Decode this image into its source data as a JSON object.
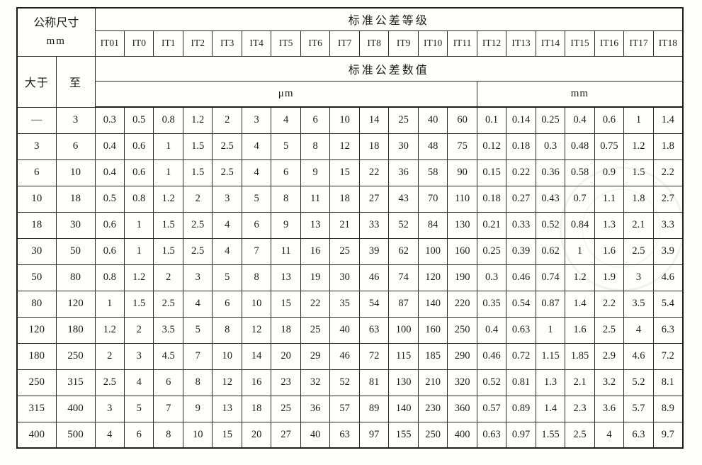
{
  "table": {
    "header": {
      "nominal_size_title": "公称尺寸",
      "nominal_size_unit": "mm",
      "grades_title": "标准公差等级",
      "values_title": "标准公差数值",
      "col_over": "大于",
      "col_to": "至",
      "unit_micron": "μm",
      "unit_mm": "mm",
      "grade_labels": [
        "IT01",
        "IT0",
        "IT1",
        "IT2",
        "IT3",
        "IT4",
        "IT5",
        "IT6",
        "IT7",
        "IT8",
        "IT9",
        "IT10",
        "IT11",
        "IT12",
        "IT13",
        "IT14",
        "IT15",
        "IT16",
        "IT17",
        "IT18"
      ],
      "micron_span": 13,
      "mm_span": 7
    },
    "rows": [
      {
        "over": "—",
        "to": "3",
        "values": [
          "0.3",
          "0.5",
          "0.8",
          "1.2",
          "2",
          "3",
          "4",
          "6",
          "10",
          "14",
          "25",
          "40",
          "60",
          "0.1",
          "0.14",
          "0.25",
          "0.4",
          "0.6",
          "1",
          "1.4"
        ]
      },
      {
        "over": "3",
        "to": "6",
        "values": [
          "0.4",
          "0.6",
          "1",
          "1.5",
          "2.5",
          "4",
          "5",
          "8",
          "12",
          "18",
          "30",
          "48",
          "75",
          "0.12",
          "0.18",
          "0.3",
          "0.48",
          "0.75",
          "1.2",
          "1.8"
        ]
      },
      {
        "over": "6",
        "to": "10",
        "values": [
          "0.4",
          "0.6",
          "1",
          "1.5",
          "2.5",
          "4",
          "6",
          "9",
          "15",
          "22",
          "36",
          "58",
          "90",
          "0.15",
          "0.22",
          "0.36",
          "0.58",
          "0.9",
          "1.5",
          "2.2"
        ]
      },
      {
        "over": "10",
        "to": "18",
        "values": [
          "0.5",
          "0.8",
          "1.2",
          "2",
          "3",
          "5",
          "8",
          "11",
          "18",
          "27",
          "43",
          "70",
          "110",
          "0.18",
          "0.27",
          "0.43",
          "0.7",
          "1.1",
          "1.8",
          "2.7"
        ]
      },
      {
        "over": "18",
        "to": "30",
        "values": [
          "0.6",
          "1",
          "1.5",
          "2.5",
          "4",
          "6",
          "9",
          "13",
          "21",
          "33",
          "52",
          "84",
          "130",
          "0.21",
          "0.33",
          "0.52",
          "0.84",
          "1.3",
          "2.1",
          "3.3"
        ]
      },
      {
        "over": "30",
        "to": "50",
        "values": [
          "0.6",
          "1",
          "1.5",
          "2.5",
          "4",
          "7",
          "11",
          "16",
          "25",
          "39",
          "62",
          "100",
          "160",
          "0.25",
          "0.39",
          "0.62",
          "1",
          "1.6",
          "2.5",
          "3.9"
        ]
      },
      {
        "over": "50",
        "to": "80",
        "values": [
          "0.8",
          "1.2",
          "2",
          "3",
          "5",
          "8",
          "13",
          "19",
          "30",
          "46",
          "74",
          "120",
          "190",
          "0.3",
          "0.46",
          "0.74",
          "1.2",
          "1.9",
          "3",
          "4.6"
        ]
      },
      {
        "over": "80",
        "to": "120",
        "values": [
          "1",
          "1.5",
          "2.5",
          "4",
          "6",
          "10",
          "15",
          "22",
          "35",
          "54",
          "87",
          "140",
          "220",
          "0.35",
          "0.54",
          "0.87",
          "1.4",
          "2.2",
          "3.5",
          "5.4"
        ]
      },
      {
        "over": "120",
        "to": "180",
        "values": [
          "1.2",
          "2",
          "3.5",
          "5",
          "8",
          "12",
          "18",
          "25",
          "40",
          "63",
          "100",
          "160",
          "250",
          "0.4",
          "0.63",
          "1",
          "1.6",
          "2.5",
          "4",
          "6.3"
        ]
      },
      {
        "over": "180",
        "to": "250",
        "values": [
          "2",
          "3",
          "4.5",
          "7",
          "10",
          "14",
          "20",
          "29",
          "46",
          "72",
          "115",
          "185",
          "290",
          "0.46",
          "0.72",
          "1.15",
          "1.85",
          "2.9",
          "4.6",
          "7.2"
        ]
      },
      {
        "over": "250",
        "to": "315",
        "values": [
          "2.5",
          "4",
          "6",
          "8",
          "12",
          "16",
          "23",
          "32",
          "52",
          "81",
          "130",
          "210",
          "320",
          "0.52",
          "0.81",
          "1.3",
          "2.1",
          "3.2",
          "5.2",
          "8.1"
        ]
      },
      {
        "over": "315",
        "to": "400",
        "values": [
          "3",
          "5",
          "7",
          "9",
          "13",
          "18",
          "25",
          "36",
          "57",
          "89",
          "140",
          "230",
          "360",
          "0.57",
          "0.89",
          "1.4",
          "2.3",
          "3.6",
          "5.7",
          "8.9"
        ]
      },
      {
        "over": "400",
        "to": "500",
        "values": [
          "4",
          "6",
          "8",
          "10",
          "15",
          "20",
          "27",
          "40",
          "63",
          "97",
          "155",
          "250",
          "400",
          "0.63",
          "0.97",
          "1.55",
          "2.5",
          "4",
          "6.3",
          "9.7"
        ]
      }
    ]
  },
  "colors": {
    "border": "#2a2a2a",
    "outer_border": "#1c1c1c",
    "background": "#fdfdfc",
    "text": "#1b1b1b"
  }
}
